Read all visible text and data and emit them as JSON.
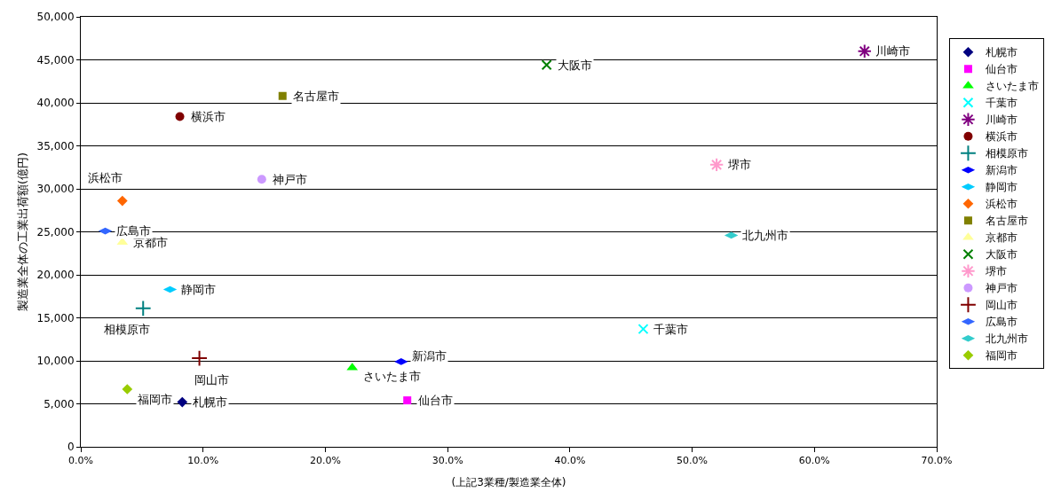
{
  "chart_data": {
    "type": "scatter",
    "xlabel": "(上記3業種/製造業全体)",
    "ylabel": "製造業全体の工業出荷額(億円)",
    "xlim": [
      0,
      70
    ],
    "ylim": [
      0,
      50000
    ],
    "xticks": [
      {
        "value": 0,
        "label": "0.0%"
      },
      {
        "value": 10,
        "label": "10.0%"
      },
      {
        "value": 20,
        "label": "20.0%"
      },
      {
        "value": 30,
        "label": "30.0%"
      },
      {
        "value": 40,
        "label": "40.0%"
      },
      {
        "value": 50,
        "label": "50.0%"
      },
      {
        "value": 60,
        "label": "60.0%"
      },
      {
        "value": 70,
        "label": "70.0%"
      }
    ],
    "yticks": [
      {
        "value": 0,
        "label": "0"
      },
      {
        "value": 5000,
        "label": "5,000"
      },
      {
        "value": 10000,
        "label": "10,000"
      },
      {
        "value": 15000,
        "label": "15,000"
      },
      {
        "value": 20000,
        "label": "20,000"
      },
      {
        "value": 25000,
        "label": "25,000"
      },
      {
        "value": 30000,
        "label": "30,000"
      },
      {
        "value": 35000,
        "label": "35,000"
      },
      {
        "value": 40000,
        "label": "40,000"
      },
      {
        "value": 45000,
        "label": "45,000"
      },
      {
        "value": 50000,
        "label": "50,000"
      }
    ],
    "grid": "y",
    "legend": "right",
    "series": [
      {
        "name": "札幌市",
        "color": "#000080",
        "marker": "diamond",
        "x": [
          8.3
        ],
        "values": [
          5200
        ]
      },
      {
        "name": "仙台市",
        "color": "#ff00ff",
        "marker": "square",
        "x": [
          26.7
        ],
        "values": [
          5400
        ]
      },
      {
        "name": "さいたま市",
        "color": "#00ff00",
        "marker": "triangle",
        "x": [
          22.2
        ],
        "values": [
          9200
        ]
      },
      {
        "name": "千葉市",
        "color": "#00ffff",
        "marker": "x",
        "x": [
          46.0
        ],
        "values": [
          13700
        ]
      },
      {
        "name": "川崎市",
        "color": "#800080",
        "marker": "cross",
        "x": [
          64.1
        ],
        "values": [
          46000
        ]
      },
      {
        "name": "横浜市",
        "color": "#800000",
        "marker": "circle",
        "x": [
          8.1
        ],
        "values": [
          38400
        ]
      },
      {
        "name": "相模原市",
        "color": "#008080",
        "marker": "cross",
        "x": [
          5.1
        ],
        "values": [
          16100
        ]
      },
      {
        "name": "新潟市",
        "color": "#0000ff",
        "x": [
          26.2
        ],
        "values": [
          9900
        ]
      },
      {
        "name": "静岡市",
        "color": "#00ccff",
        "x": [
          7.3
        ],
        "values": [
          18300
        ]
      },
      {
        "name": "浜松市",
        "color": "#ff6600",
        "marker": "diamond",
        "x": [
          3.4
        ],
        "values": [
          28600
        ]
      },
      {
        "name": "名古屋市",
        "color": "#808000",
        "marker": "square",
        "x": [
          16.5
        ],
        "values": [
          40800
        ]
      },
      {
        "name": "京都市",
        "color": "#ffff99",
        "marker": "triangle",
        "x": [
          3.4
        ],
        "values": [
          23800
        ]
      },
      {
        "name": "大阪市",
        "color": "#008000",
        "marker": "x",
        "x": [
          38.1
        ],
        "values": [
          44400
        ]
      },
      {
        "name": "堺市",
        "color": "#ff99cc",
        "marker": "cross",
        "x": [
          52.0
        ],
        "values": [
          32800
        ]
      },
      {
        "name": "神戸市",
        "color": "#cc99ff",
        "marker": "circle",
        "x": [
          14.8
        ],
        "values": [
          31100
        ]
      },
      {
        "name": "岡山市",
        "color": "#800000",
        "marker": "cross",
        "x": [
          9.7
        ],
        "values": [
          10300
        ]
      },
      {
        "name": "広島市",
        "color": "#3366ff",
        "x": [
          2.0
        ],
        "values": [
          25100
        ]
      },
      {
        "name": "北九州市",
        "color": "#33cccc",
        "x": [
          53.2
        ],
        "values": [
          24600
        ]
      },
      {
        "name": "福岡市",
        "color": "#99cc00",
        "marker": "diamond",
        "x": [
          3.8
        ],
        "values": [
          6700
        ]
      }
    ]
  }
}
